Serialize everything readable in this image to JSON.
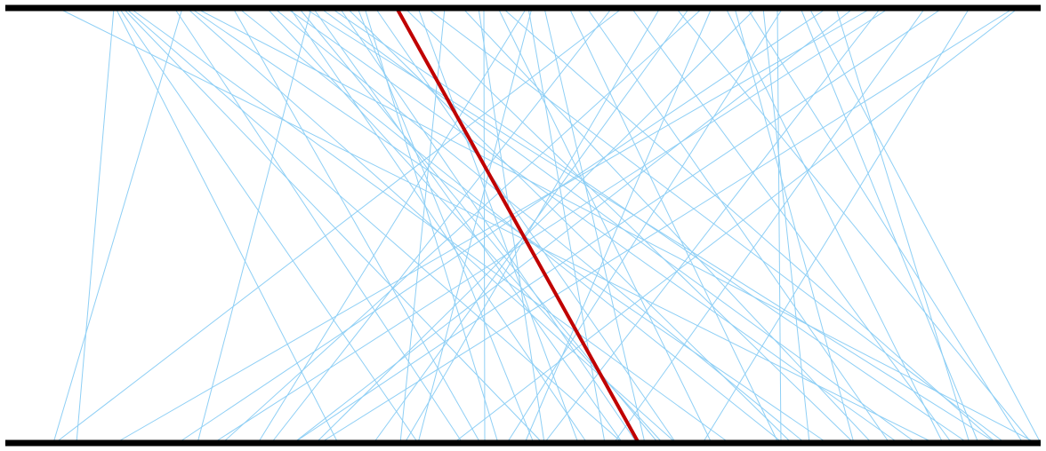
{
  "colors": {
    "background": "#ffffff",
    "axis": "#000000",
    "connection": "#8ecff5",
    "highlight": "#c00000"
  },
  "scale": {
    "min": 0,
    "max": 1176
  },
  "connections": [
    {
      "top": 65,
      "bottom": 1050
    },
    {
      "top": 128,
      "bottom": 86
    },
    {
      "top": 130,
      "bottom": 380
    },
    {
      "top": 134,
      "bottom": 470
    },
    {
      "top": 138,
      "bottom": 610
    },
    {
      "top": 141,
      "bottom": 700
    },
    {
      "top": 146,
      "bottom": 820
    },
    {
      "top": 196,
      "bottom": 520
    },
    {
      "top": 205,
      "bottom": 60
    },
    {
      "top": 210,
      "bottom": 760
    },
    {
      "top": 214,
      "bottom": 930
    },
    {
      "top": 220,
      "bottom": 1165
    },
    {
      "top": 262,
      "bottom": 540
    },
    {
      "top": 268,
      "bottom": 880
    },
    {
      "top": 308,
      "bottom": 905
    },
    {
      "top": 322,
      "bottom": 1010
    },
    {
      "top": 326,
      "bottom": 660
    },
    {
      "top": 336,
      "bottom": 740
    },
    {
      "top": 342,
      "bottom": 1120
    },
    {
      "top": 350,
      "bottom": 222
    },
    {
      "top": 352,
      "bottom": 700
    },
    {
      "top": 372,
      "bottom": 1088
    },
    {
      "top": 382,
      "bottom": 716
    },
    {
      "top": 390,
      "bottom": 890
    },
    {
      "top": 410,
      "bottom": 560
    },
    {
      "top": 422,
      "bottom": 760
    },
    {
      "top": 470,
      "bottom": 650
    },
    {
      "top": 480,
      "bottom": 1130
    },
    {
      "top": 500,
      "bottom": 450
    },
    {
      "top": 520,
      "bottom": 980
    },
    {
      "top": 538,
      "bottom": 612
    },
    {
      "top": 544,
      "bottom": 545
    },
    {
      "top": 560,
      "bottom": 800
    },
    {
      "top": 592,
      "bottom": 290
    },
    {
      "top": 594,
      "bottom": 680
    },
    {
      "top": 598,
      "bottom": 470
    },
    {
      "top": 640,
      "bottom": 875
    },
    {
      "top": 660,
      "bottom": 1000
    },
    {
      "top": 700,
      "bottom": 62
    },
    {
      "top": 710,
      "bottom": 1070
    },
    {
      "top": 760,
      "bottom": 1160
    },
    {
      "top": 775,
      "bottom": 420
    },
    {
      "top": 790,
      "bottom": 250
    },
    {
      "top": 800,
      "bottom": 590
    },
    {
      "top": 826,
      "bottom": 960
    },
    {
      "top": 840,
      "bottom": 1150
    },
    {
      "top": 850,
      "bottom": 355
    },
    {
      "top": 858,
      "bottom": 910
    },
    {
      "top": 874,
      "bottom": 878
    },
    {
      "top": 880,
      "bottom": 570
    },
    {
      "top": 900,
      "bottom": 1100
    },
    {
      "top": 910,
      "bottom": 1170
    },
    {
      "top": 930,
      "bottom": 200
    },
    {
      "top": 940,
      "bottom": 1090
    },
    {
      "top": 960,
      "bottom": 330
    },
    {
      "top": 980,
      "bottom": 130
    },
    {
      "top": 1000,
      "bottom": 240
    },
    {
      "top": 1040,
      "bottom": 690
    },
    {
      "top": 1060,
      "bottom": 330
    },
    {
      "top": 1090,
      "bottom": 790
    },
    {
      "top": 1140,
      "bottom": 360
    },
    {
      "top": 1145,
      "bottom": 510
    },
    {
      "top": 300,
      "bottom": 745
    },
    {
      "top": 360,
      "bottom": 1030
    },
    {
      "top": 402,
      "bottom": 600
    },
    {
      "top": 455,
      "bottom": 960
    },
    {
      "top": 565,
      "bottom": 1120
    },
    {
      "top": 612,
      "bottom": 725
    },
    {
      "top": 688,
      "bottom": 305
    },
    {
      "top": 742,
      "bottom": 455
    },
    {
      "top": 816,
      "bottom": 1060
    },
    {
      "top": 990,
      "bottom": 612
    }
  ],
  "highlighted": {
    "top": 446,
    "bottom": 718
  }
}
